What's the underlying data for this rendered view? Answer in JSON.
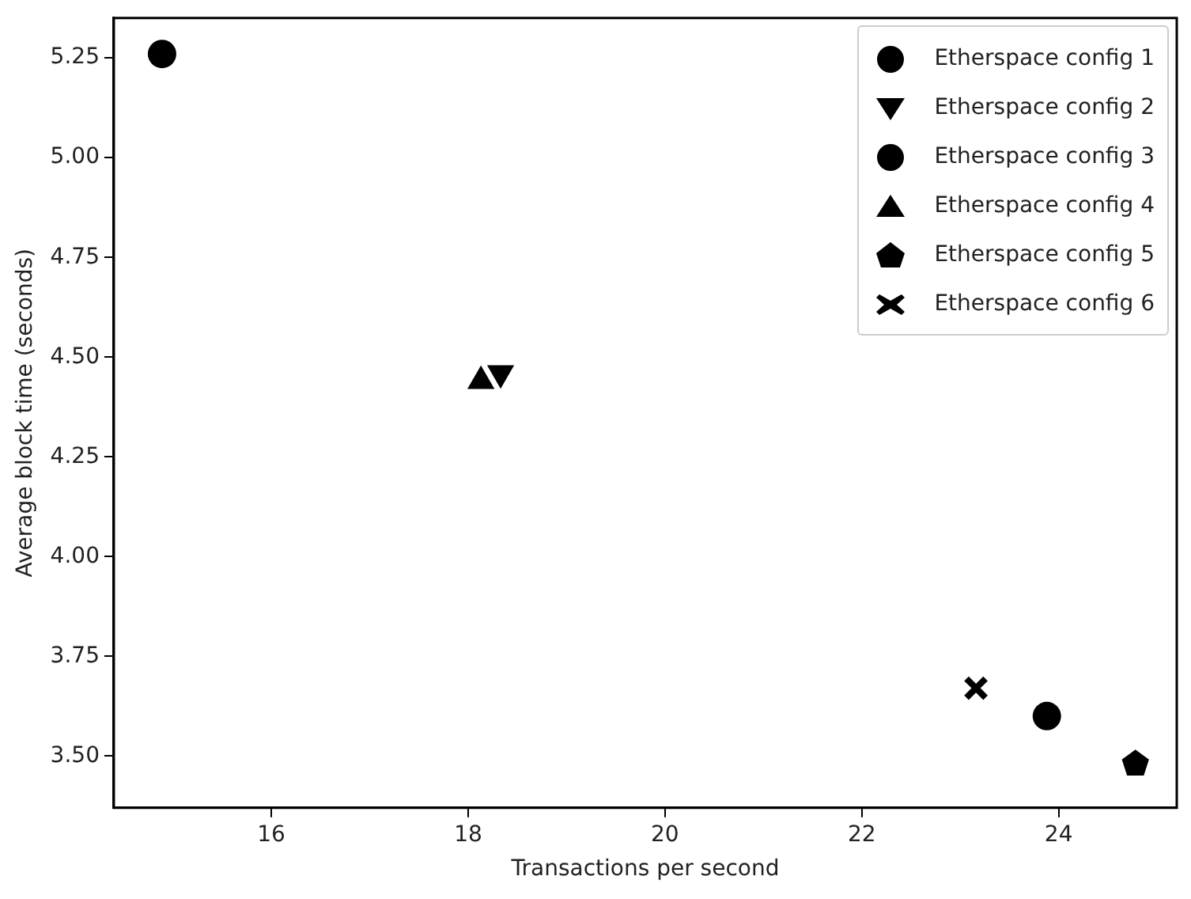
{
  "chart_data": {
    "type": "scatter",
    "xlabel": "Transactions per second",
    "ylabel": "Average block time (seconds)",
    "xlim": [
      14.4,
      25.2
    ],
    "xticks": [
      16,
      18,
      20,
      22,
      24
    ],
    "ylim": [
      3.37,
      5.35
    ],
    "yticks": [
      {
        "value": 3.5,
        "label": "3.50"
      },
      {
        "value": 3.75,
        "label": "3.75"
      },
      {
        "value": 4.0,
        "label": "4.00"
      },
      {
        "value": 4.25,
        "label": "4.25"
      },
      {
        "value": 4.5,
        "label": "4.50"
      },
      {
        "value": 4.75,
        "label": "4.75"
      },
      {
        "value": 5.0,
        "label": "5.00"
      },
      {
        "value": 5.25,
        "label": "5.25"
      }
    ],
    "grid": false,
    "legend": "top right",
    "series": [
      {
        "name": "Etherspace config 1",
        "color": "#000000",
        "marker": "circle",
        "x": [
          14.89
        ],
        "values": [
          5.26
        ]
      },
      {
        "name": "Etherspace config 2",
        "color": "#000000",
        "marker": "triangle-down",
        "x": [
          18.33
        ],
        "values": [
          4.46
        ]
      },
      {
        "name": "Etherspace config 3",
        "color": "#000000",
        "marker": "circle",
        "x": [
          23.88
        ],
        "values": [
          3.6
        ]
      },
      {
        "name": "Etherspace config 4",
        "color": "#000000",
        "marker": "triangle",
        "x": [
          18.13
        ],
        "values": [
          4.44
        ]
      },
      {
        "name": "Etherspace config 5",
        "color": "#000000",
        "x": [
          24.78
        ],
        "values": [
          3.48
        ]
      },
      {
        "name": "Etherspace config 6",
        "color": "#000000",
        "marker": "cross",
        "x": [
          23.16
        ],
        "values": [
          3.67
        ]
      }
    ]
  }
}
